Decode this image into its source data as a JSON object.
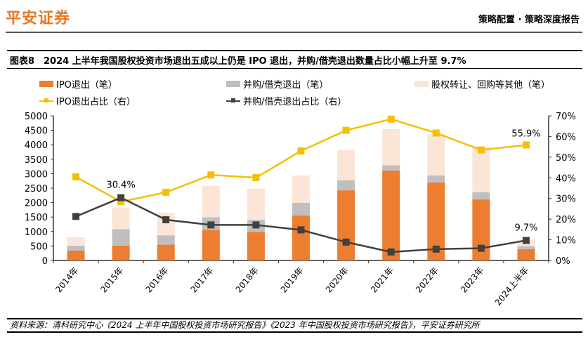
{
  "header": {
    "logo": "平安证券",
    "report_type": "策略配置 · 策略深度报告"
  },
  "figure": {
    "number": "图表8",
    "title": "2024 上半年我国股权投资市场退出五成以上仍是 IPO 退出，并购/借壳退出数量占比小幅上升至 9.7%"
  },
  "source": "资料来源：清科研究中心《2024 上半年中国股权投资市场研究报告》《2023 年中国股权投资市场研究报告》，平安证券研究所",
  "chart_data": {
    "type": "bar",
    "stacked": true,
    "categories": [
      "2014年",
      "2015年",
      "2016年",
      "2017年",
      "2018年",
      "2019年",
      "2020年",
      "2021年",
      "2022年",
      "2023年",
      "2024上半年"
    ],
    "y_left": {
      "range": [
        0,
        5000
      ],
      "ticks": [
        0,
        500,
        1000,
        1500,
        2000,
        2500,
        3000,
        3500,
        4000,
        4500,
        5000
      ]
    },
    "y_right": {
      "range": [
        0,
        70
      ],
      "ticks": [
        "0%",
        "10%",
        "20%",
        "30%",
        "40%",
        "50%",
        "60%",
        "70%"
      ]
    },
    "series": [
      {
        "name": "IPO退出（笔）",
        "type": "bar",
        "axis": "left",
        "color": "#ed7d31",
        "values": [
          340,
          510,
          545,
          1055,
          990,
          1560,
          2425,
          3110,
          2700,
          2110,
          390
        ]
      },
      {
        "name": "并购/借壳退出（笔）",
        "type": "bar",
        "axis": "left",
        "color": "#bfbfbf",
        "values": [
          170,
          570,
          325,
          440,
          415,
          430,
          350,
          180,
          240,
          250,
          105
        ]
      },
      {
        "name": "股权转让、回购等其他（笔）",
        "type": "bar",
        "axis": "left",
        "color": "#fbe5d6",
        "values": [
          300,
          750,
          780,
          1085,
          1085,
          950,
          1050,
          1250,
          1425,
          1575,
          220
        ]
      },
      {
        "name": "IPO退出占比（右）",
        "type": "line",
        "axis": "right",
        "color": "#f5c000",
        "values": [
          40.5,
          28.4,
          33.0,
          41.4,
          40.1,
          53.0,
          63.0,
          68.4,
          61.7,
          53.5,
          55.9
        ]
      },
      {
        "name": "并购/借壳退出占比（右）",
        "type": "line",
        "axis": "right",
        "color": "#404040",
        "values": [
          21.3,
          30.4,
          19.7,
          17.2,
          17.2,
          14.8,
          8.9,
          4.1,
          5.5,
          5.9,
          9.7
        ]
      }
    ],
    "annotations": [
      "30.4%",
      "55.9%",
      "9.7%"
    ],
    "legend": "top",
    "grid": false
  }
}
